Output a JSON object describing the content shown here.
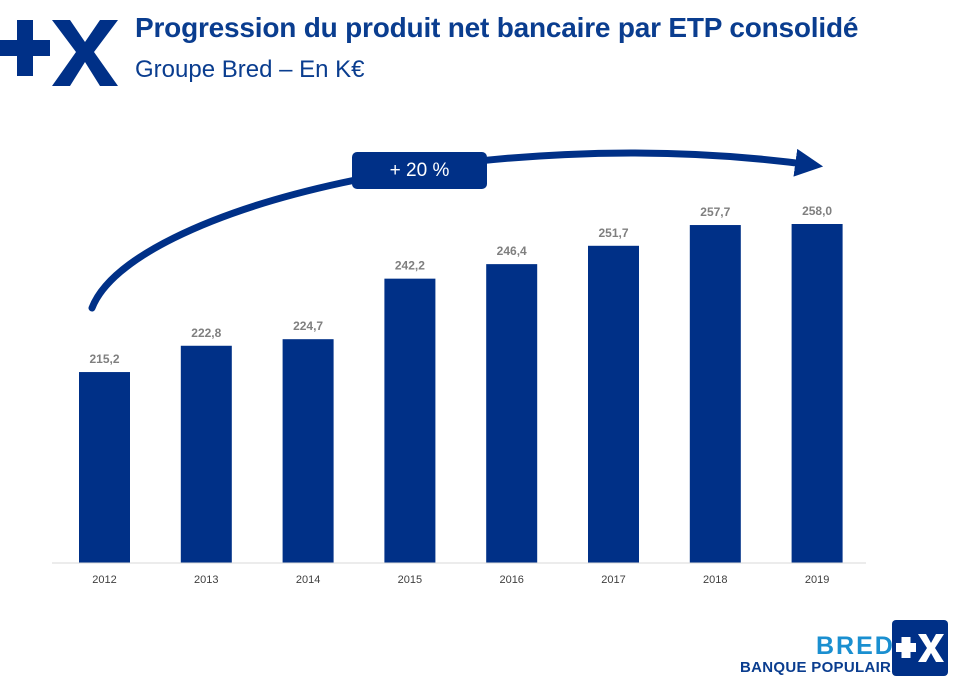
{
  "header": {
    "logo_icon": "plus-x-logo-icon",
    "title": "Progression du produit net bancaire par ETP consolidé",
    "subtitle": "Groupe Bred – En K€"
  },
  "colors": {
    "brand_blue": "#003087",
    "title_blue": "#0a3d8f",
    "accent_blue": "#1a8fd0",
    "label_gray": "#7f7f7f"
  },
  "chart_data": {
    "type": "bar",
    "categories": [
      "2012",
      "2013",
      "2014",
      "2015",
      "2016",
      "2017",
      "2018",
      "2019"
    ],
    "values": [
      215.2,
      222.8,
      224.7,
      242.2,
      246.4,
      251.7,
      257.7,
      258.0
    ],
    "value_labels": [
      "215,2",
      "222,8",
      "224,7",
      "242,2",
      "246,4",
      "251,7",
      "257,7",
      "258,0"
    ],
    "title": "",
    "xlabel": "",
    "ylabel": "",
    "y_axis_visible": false,
    "grid": false,
    "ylim": [
      160,
      265
    ],
    "annotation": {
      "text": "+ 20 %",
      "from": "2012",
      "to": "2019",
      "arrow": "curved"
    }
  },
  "footer": {
    "brand_name": "BRED",
    "brand_sub": "BANQUE POPULAIRE",
    "brand_icon": "plus-x-badge-icon"
  }
}
